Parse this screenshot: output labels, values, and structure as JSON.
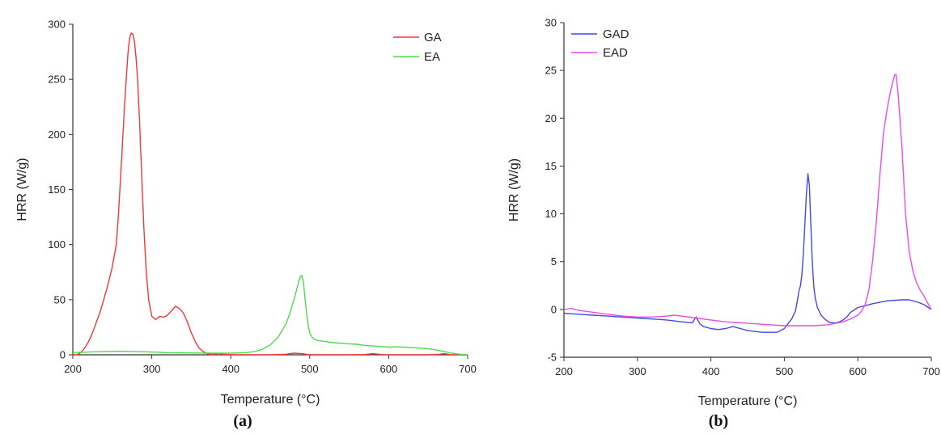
{
  "chart_data": [
    {
      "panel_label": "(a)",
      "type": "line",
      "xlabel": "Temperature (°C)",
      "ylabel": "HRR (W/g)",
      "xlim": [
        200,
        700
      ],
      "ylim": [
        0,
        300
      ],
      "x_ticks": [
        "200",
        "300",
        "400",
        "500",
        "600",
        "700"
      ],
      "y_ticks": [
        "0",
        "50",
        "100",
        "150",
        "200",
        "250",
        "300"
      ],
      "grid": false,
      "legend_position": "top-right",
      "series": [
        {
          "name": "GA",
          "color": "#f0383a",
          "x": [
            200,
            205,
            210,
            215,
            220,
            225,
            230,
            235,
            240,
            245,
            250,
            255,
            258,
            262,
            265,
            268,
            270,
            272,
            274,
            276,
            278,
            280,
            282,
            284,
            286,
            288,
            290,
            293,
            296,
            300,
            305,
            310,
            315,
            320,
            325,
            330,
            335,
            340,
            345,
            350,
            355,
            360,
            365,
            370,
            375,
            380,
            385,
            390,
            400,
            420,
            450,
            470,
            480,
            490,
            500,
            550,
            570,
            580,
            590,
            600,
            650,
            665,
            670,
            675,
            680,
            700
          ],
          "y": [
            0,
            0,
            2,
            6,
            12,
            20,
            30,
            40,
            52,
            65,
            80,
            100,
            130,
            180,
            220,
            255,
            275,
            288,
            292,
            291,
            285,
            270,
            250,
            220,
            185,
            150,
            115,
            75,
            50,
            35,
            32,
            35,
            34,
            36,
            40,
            44,
            42,
            38,
            30,
            20,
            12,
            6,
            3,
            1,
            0.5,
            0.5,
            1.5,
            0.5,
            0,
            0,
            0,
            0.5,
            1.5,
            1,
            0,
            0,
            0.3,
            1,
            0.3,
            0,
            0,
            0.5,
            1,
            0.5,
            0,
            0
          ]
        },
        {
          "name": "EA",
          "color": "#4ddc48",
          "x": [
            200,
            220,
            240,
            260,
            280,
            300,
            320,
            340,
            360,
            380,
            400,
            420,
            430,
            440,
            450,
            460,
            470,
            475,
            480,
            483,
            486,
            488,
            490,
            492,
            494,
            496,
            498,
            500,
            503,
            506,
            510,
            520,
            530,
            540,
            550,
            560,
            570,
            580,
            590,
            600,
            610,
            620,
            630,
            640,
            650,
            660,
            670,
            680,
            690,
            700
          ],
          "y": [
            2,
            2.5,
            3,
            3.2,
            3,
            2.5,
            2,
            1.8,
            1.6,
            1.5,
            1.5,
            2,
            3,
            5,
            9,
            16,
            28,
            38,
            50,
            58,
            66,
            71,
            72,
            66,
            52,
            38,
            27,
            20,
            16,
            14,
            13,
            12,
            11,
            10.5,
            10,
            9.5,
            8.5,
            8,
            7.5,
            7,
            7.2,
            7,
            6.5,
            6,
            5.5,
            4.5,
            3,
            1.5,
            0.5,
            0
          ]
        }
      ]
    },
    {
      "panel_label": "(b)",
      "type": "line",
      "xlabel": "Temperature (°C)",
      "ylabel": "HRR (W/g)",
      "xlim": [
        200,
        700
      ],
      "ylim": [
        -5,
        30
      ],
      "x_ticks": [
        "200",
        "300",
        "400",
        "500",
        "600",
        "700"
      ],
      "y_ticks": [
        "-5",
        "0",
        "5",
        "10",
        "15",
        "20",
        "25",
        "30"
      ],
      "grid": false,
      "legend_position": "top-left",
      "series": [
        {
          "name": "GAD",
          "color": "#4747e6",
          "x": [
            200,
            220,
            240,
            260,
            280,
            300,
            320,
            340,
            360,
            375,
            378,
            380,
            382,
            385,
            390,
            400,
            410,
            420,
            425,
            430,
            435,
            440,
            450,
            460,
            470,
            480,
            490,
            500,
            505,
            510,
            515,
            518,
            520,
            522,
            524,
            526,
            528,
            530,
            532,
            534,
            536,
            538,
            540,
            542,
            545,
            550,
            555,
            560,
            565,
            570,
            575,
            580,
            585,
            590,
            600,
            620,
            640,
            660,
            670,
            680,
            690,
            700
          ],
          "y": [
            -0.4,
            -0.5,
            -0.6,
            -0.7,
            -0.8,
            -0.9,
            -1.0,
            -1.1,
            -1.3,
            -1.4,
            -1.0,
            -0.8,
            -1.1,
            -1.5,
            -1.8,
            -2.0,
            -2.1,
            -2.0,
            -1.9,
            -1.8,
            -1.9,
            -2.0,
            -2.2,
            -2.3,
            -2.4,
            -2.4,
            -2.4,
            -2.0,
            -1.5,
            -1.0,
            -0.2,
            1.0,
            2.0,
            2.5,
            3.8,
            6.0,
            9.0,
            12.0,
            14.2,
            13.0,
            9.0,
            5.0,
            2.5,
            1.2,
            0.2,
            -0.6,
            -1.0,
            -1.3,
            -1.4,
            -1.4,
            -1.3,
            -1.1,
            -0.8,
            -0.3,
            0.2,
            0.6,
            0.9,
            1.0,
            1.0,
            0.8,
            0.5,
            0.0
          ]
        },
        {
          "name": "EAD",
          "color": "#ea4ce8",
          "x": [
            200,
            210,
            220,
            240,
            260,
            280,
            300,
            320,
            340,
            350,
            360,
            380,
            400,
            420,
            440,
            460,
            480,
            500,
            520,
            540,
            560,
            580,
            590,
            600,
            605,
            610,
            615,
            620,
            625,
            630,
            635,
            640,
            645,
            650,
            652,
            655,
            660,
            665,
            670,
            675,
            680,
            685,
            690,
            700
          ],
          "y": [
            0.0,
            0.1,
            -0.1,
            -0.3,
            -0.5,
            -0.7,
            -0.8,
            -0.8,
            -0.7,
            -0.6,
            -0.7,
            -0.9,
            -1.1,
            -1.3,
            -1.4,
            -1.5,
            -1.6,
            -1.7,
            -1.7,
            -1.7,
            -1.6,
            -1.3,
            -1.0,
            -0.6,
            -0.2,
            0.5,
            2.0,
            5.0,
            9.0,
            14.0,
            18.5,
            21.0,
            23.0,
            24.5,
            24.6,
            22.5,
            17.0,
            10.0,
            6.0,
            4.0,
            2.8,
            2.0,
            1.4,
            0.0
          ]
        }
      ]
    }
  ]
}
